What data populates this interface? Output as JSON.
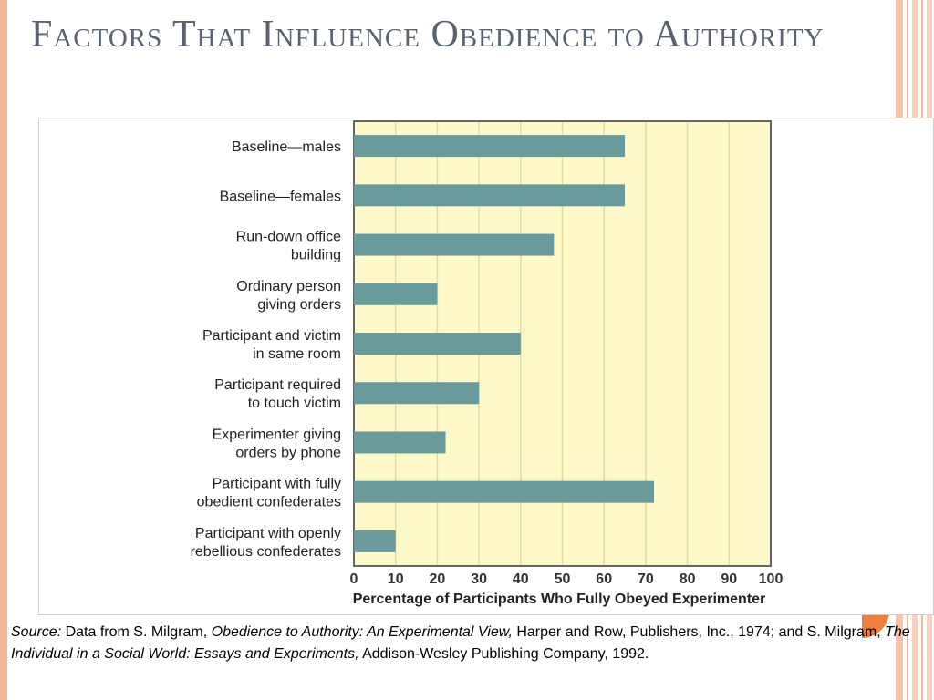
{
  "slide": {
    "title": "Factors That Influence Obedience to Authority",
    "colors": {
      "title": "#5a6370",
      "accent": "#f07e3e",
      "stripe": "#f4b89a"
    }
  },
  "chart_data": {
    "type": "bar",
    "orientation": "horizontal",
    "categories": [
      [
        "Baseline—males"
      ],
      [
        "Baseline—females"
      ],
      [
        "Run-down office",
        "building"
      ],
      [
        "Ordinary person",
        "giving orders"
      ],
      [
        "Participant and victim",
        "in same room"
      ],
      [
        "Participant required",
        "to touch victim"
      ],
      [
        "Experimenter giving",
        "orders by phone"
      ],
      [
        "Participant with fully",
        "obedient confederates"
      ],
      [
        "Participant with openly",
        "rebellious confederates"
      ]
    ],
    "values": [
      65,
      65,
      48,
      20,
      40,
      30,
      22,
      72,
      10
    ],
    "xlabel": "Percentage of Participants Who Fully Obeyed Experimenter",
    "xlim": [
      0,
      100
    ],
    "xticks": [
      0,
      10,
      20,
      30,
      40,
      50,
      60,
      70,
      80,
      90,
      100
    ],
    "grid": true,
    "colors": {
      "bar": "#6a9a9a",
      "plot_bg": "#fdf9c8",
      "grid": "#ecd9a0"
    }
  },
  "source": {
    "label": "Source:",
    "part1": " Data from S. Milgram, ",
    "book1": "Obedience to Authority: An Experimental View,",
    "part2": " Harper and Row, Publishers, Inc., 1974; and S. Milgram, ",
    "book2": "The Individual in a Social World: Essays and Experiments,",
    "part3": " Addison-Wesley Publishing Company, 1992."
  }
}
